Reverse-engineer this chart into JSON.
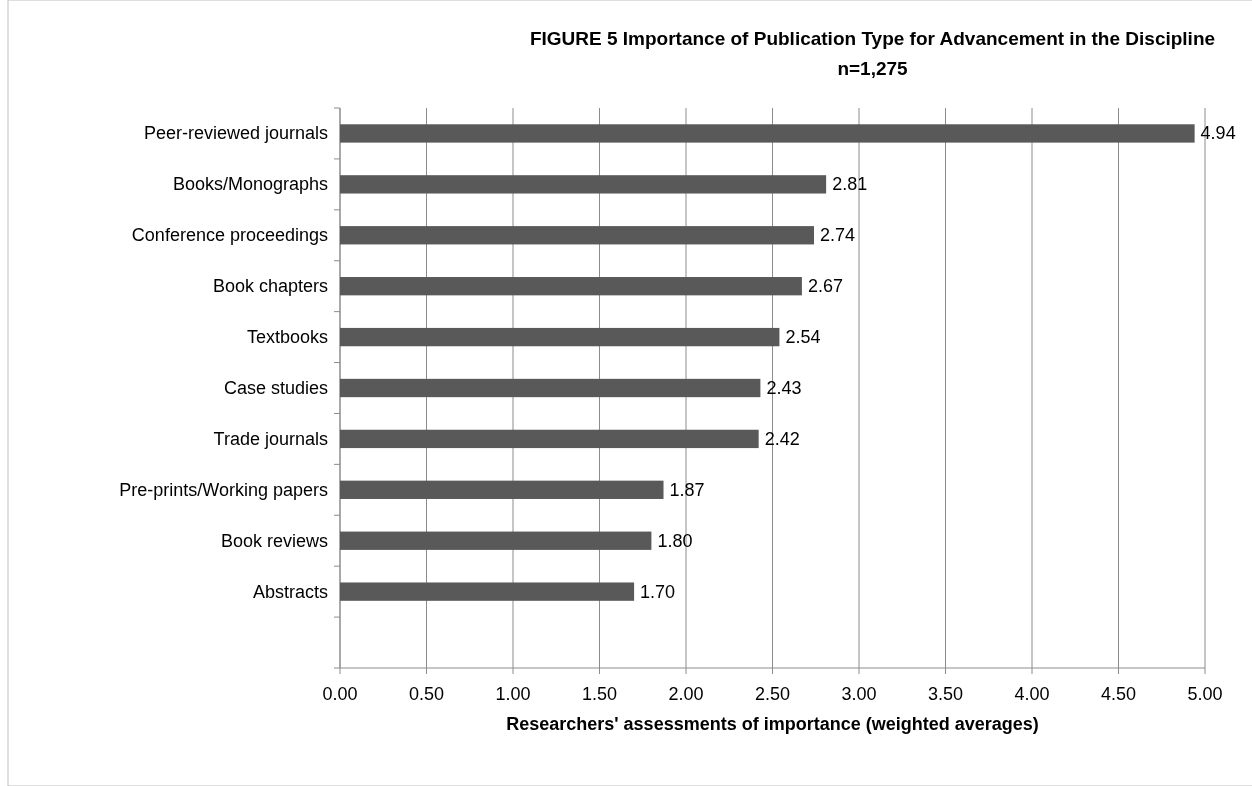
{
  "chart_data": {
    "type": "bar",
    "orientation": "horizontal",
    "title": "FIGURE  5   Importance of Publication Type for Advancement in the Discipline",
    "subtitle": "n=1,275",
    "xlabel": "Researchers' assessments of importance (weighted averages)",
    "categories": [
      "Peer-reviewed journals",
      "Books/Monographs",
      "Conference proceedings",
      "Book chapters",
      "Textbooks",
      "Case studies",
      "Trade journals",
      "Pre-prints/Working papers",
      "Book reviews",
      "Abstracts"
    ],
    "values": [
      4.94,
      2.81,
      2.74,
      2.67,
      2.54,
      2.43,
      2.42,
      1.87,
      1.8,
      1.7
    ],
    "value_labels": [
      "4.94",
      "2.81",
      "2.74",
      "2.67",
      "2.54",
      "2.43",
      "2.42",
      "1.87",
      "1.80",
      "1.70"
    ],
    "color": "#595959",
    "xlim": [
      0,
      5
    ],
    "xticks": [
      {
        "value": 0,
        "label": "0.00"
      },
      {
        "value": 0.5,
        "label": "0.50"
      },
      {
        "value": 1,
        "label": "1.00"
      },
      {
        "value": 1.5,
        "label": "1.50"
      },
      {
        "value": 2,
        "label": "2.00"
      },
      {
        "value": 2.5,
        "label": "2.50"
      },
      {
        "value": 3,
        "label": "3.00"
      },
      {
        "value": 3.5,
        "label": "3.50"
      },
      {
        "value": 4,
        "label": "4.00"
      },
      {
        "value": 4.5,
        "label": "4.50"
      },
      {
        "value": 5,
        "label": "5.00"
      }
    ],
    "grid": "x"
  }
}
